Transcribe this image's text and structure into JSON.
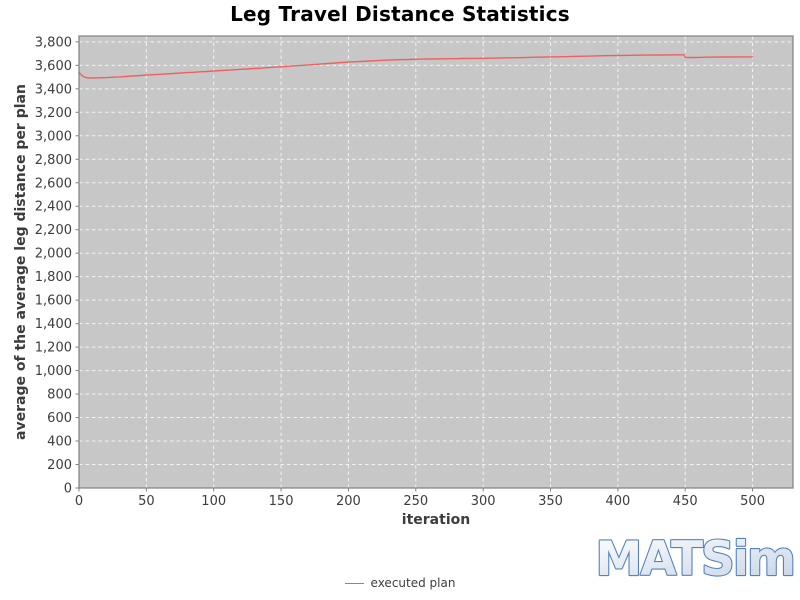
{
  "chart_data": {
    "type": "line",
    "title": "Leg Travel Distance Statistics",
    "xlabel": "iteration",
    "ylabel": "average of the average leg distance per plan",
    "xlim": [
      0,
      530
    ],
    "ylim": [
      0,
      3850
    ],
    "xticks": [
      0,
      50,
      100,
      150,
      200,
      250,
      300,
      350,
      400,
      450,
      500
    ],
    "yticks": [
      0,
      200,
      400,
      600,
      800,
      1000,
      1200,
      1400,
      1600,
      1800,
      2000,
      2200,
      2400,
      2600,
      2800,
      3000,
      3200,
      3400,
      3600,
      3800
    ],
    "grid": true,
    "legend_position": "bottom",
    "series": [
      {
        "name": "executed plan",
        "color": "#ee6060",
        "points": [
          [
            0,
            3540
          ],
          [
            2,
            3515
          ],
          [
            4,
            3500
          ],
          [
            6,
            3494
          ],
          [
            8,
            3492
          ],
          [
            10,
            3492
          ],
          [
            12,
            3493
          ],
          [
            15,
            3494
          ],
          [
            18,
            3495
          ],
          [
            21,
            3496
          ],
          [
            24,
            3498
          ],
          [
            27,
            3500
          ],
          [
            30,
            3502
          ],
          [
            35,
            3506
          ],
          [
            40,
            3509
          ],
          [
            45,
            3513
          ],
          [
            50,
            3517
          ],
          [
            55,
            3520
          ],
          [
            60,
            3524
          ],
          [
            65,
            3527
          ],
          [
            70,
            3531
          ],
          [
            75,
            3534
          ],
          [
            80,
            3538
          ],
          [
            85,
            3541
          ],
          [
            90,
            3545
          ],
          [
            95,
            3548
          ],
          [
            100,
            3552
          ],
          [
            105,
            3555
          ],
          [
            110,
            3559
          ],
          [
            115,
            3562
          ],
          [
            120,
            3566
          ],
          [
            125,
            3569
          ],
          [
            130,
            3573
          ],
          [
            135,
            3576
          ],
          [
            140,
            3580
          ],
          [
            145,
            3584
          ],
          [
            150,
            3588
          ],
          [
            155,
            3592
          ],
          [
            160,
            3596
          ],
          [
            165,
            3600
          ],
          [
            170,
            3604
          ],
          [
            175,
            3608
          ],
          [
            180,
            3612
          ],
          [
            185,
            3616
          ],
          [
            190,
            3620
          ],
          [
            195,
            3624
          ],
          [
            200,
            3628
          ],
          [
            205,
            3631
          ],
          [
            210,
            3634
          ],
          [
            215,
            3637
          ],
          [
            220,
            3640
          ],
          [
            225,
            3643
          ],
          [
            230,
            3645
          ],
          [
            235,
            3647
          ],
          [
            240,
            3649
          ],
          [
            245,
            3650
          ],
          [
            250,
            3652
          ],
          [
            255,
            3653
          ],
          [
            260,
            3654
          ],
          [
            265,
            3655
          ],
          [
            270,
            3656
          ],
          [
            275,
            3657
          ],
          [
            280,
            3657
          ],
          [
            285,
            3658
          ],
          [
            290,
            3659
          ],
          [
            295,
            3659
          ],
          [
            300,
            3660
          ],
          [
            310,
            3662
          ],
          [
            320,
            3664
          ],
          [
            330,
            3666
          ],
          [
            340,
            3669
          ],
          [
            350,
            3672
          ],
          [
            360,
            3674
          ],
          [
            370,
            3677
          ],
          [
            380,
            3679
          ],
          [
            390,
            3682
          ],
          [
            400,
            3684
          ],
          [
            410,
            3686
          ],
          [
            420,
            3687
          ],
          [
            430,
            3688
          ],
          [
            440,
            3689
          ],
          [
            445,
            3690
          ],
          [
            449,
            3690
          ],
          [
            450,
            3667
          ],
          [
            455,
            3667
          ],
          [
            460,
            3668
          ],
          [
            465,
            3669
          ],
          [
            470,
            3670
          ],
          [
            480,
            3671
          ],
          [
            490,
            3672
          ],
          [
            500,
            3672
          ]
        ]
      }
    ]
  },
  "legend": {
    "items": [
      {
        "label": "executed plan",
        "color": "#ee6060"
      }
    ]
  },
  "watermark": {
    "text": "MATSim"
  },
  "colors": {
    "plot_bg": "#c7c7c7",
    "grid": "#ffffff",
    "axis": "#808080",
    "tick_label": "#3d3d3d",
    "axis_label": "#3c3c3c",
    "title": "#000000",
    "watermark_stroke": "#5581c1",
    "watermark_fill_top": "#ffffff",
    "watermark_fill_bottom": "#ccd7e8"
  }
}
